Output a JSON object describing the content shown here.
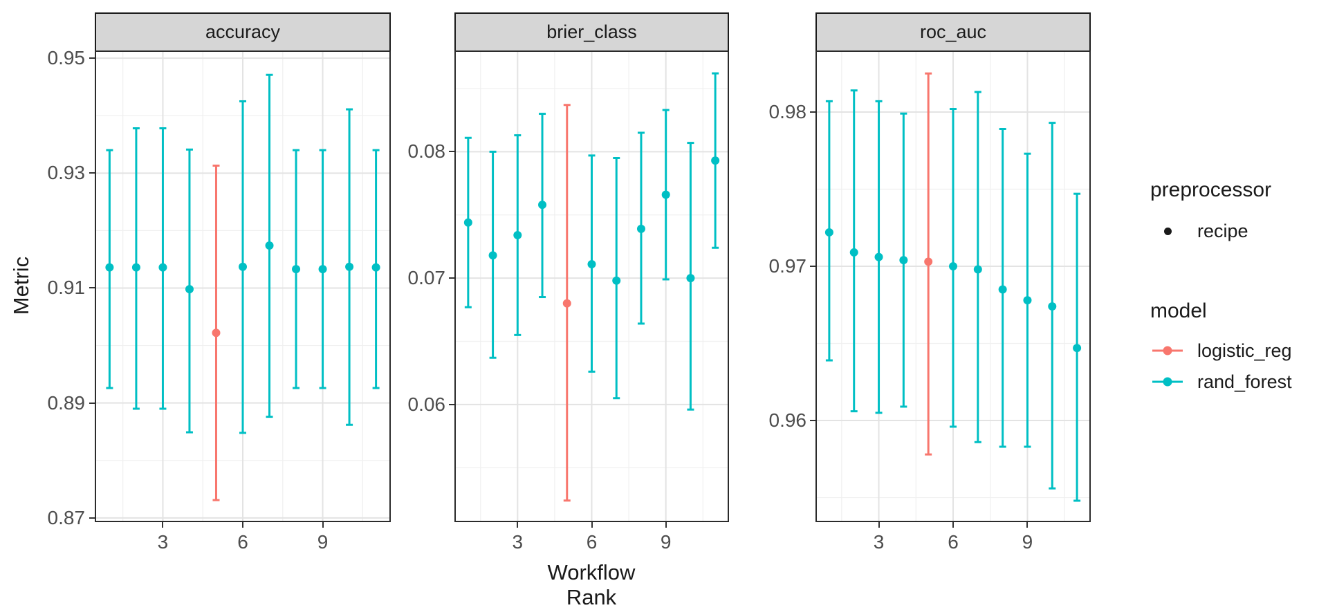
{
  "figure": {
    "y_axis_title": "Metric",
    "x_axis_title": "Workflow Rank",
    "colors": {
      "logistic_reg": "#F8766D",
      "rand_forest": "#00BFC4",
      "preprocessor_point": "#1a1a1a"
    }
  },
  "legend": {
    "groups": [
      {
        "title": "preprocessor",
        "items": [
          {
            "label": "recipe",
            "glyph": "point",
            "color": "#1a1a1a"
          }
        ]
      },
      {
        "title": "model",
        "items": [
          {
            "label": "logistic_reg",
            "glyph": "pointrange",
            "color": "#F8766D"
          },
          {
            "label": "rand_forest",
            "glyph": "pointrange",
            "color": "#00BFC4"
          }
        ]
      }
    ]
  },
  "chart_data": {
    "type": "scatter",
    "mark": "pointrange-with-errorbar",
    "xlabel": "Workflow Rank",
    "ylabel": "Metric",
    "grid": "on",
    "legend_position": "right",
    "x_domain": [
      1,
      11
    ],
    "x_ticks": [
      {
        "value": 3,
        "label": "3"
      },
      {
        "value": 6,
        "label": "6"
      },
      {
        "value": 9,
        "label": "9"
      }
    ],
    "x_minor_ticks": [
      1.5,
      4.5,
      7.5,
      10.5
    ],
    "facets": [
      {
        "label": "accuracy",
        "ylim": [
          0.8695,
          0.9511
        ],
        "y_ticks": [
          {
            "value": 0.87,
            "label": "0.87"
          },
          {
            "value": 0.89,
            "label": "0.89"
          },
          {
            "value": 0.91,
            "label": "0.91"
          },
          {
            "value": 0.93,
            "label": "0.93"
          },
          {
            "value": 0.95,
            "label": "0.95"
          }
        ],
        "points": [
          {
            "rank": 1,
            "model": "rand_forest",
            "preprocessor": "recipe",
            "mean": 0.9136,
            "lower": 0.8926,
            "upper": 0.934
          },
          {
            "rank": 2,
            "model": "rand_forest",
            "preprocessor": "recipe",
            "mean": 0.9136,
            "lower": 0.889,
            "upper": 0.9378
          },
          {
            "rank": 3,
            "model": "rand_forest",
            "preprocessor": "recipe",
            "mean": 0.9136,
            "lower": 0.889,
            "upper": 0.9378
          },
          {
            "rank": 4,
            "model": "rand_forest",
            "preprocessor": "recipe",
            "mean": 0.9098,
            "lower": 0.8849,
            "upper": 0.9341
          },
          {
            "rank": 5,
            "model": "logistic_reg",
            "preprocessor": "recipe",
            "mean": 0.9022,
            "lower": 0.8731,
            "upper": 0.9313
          },
          {
            "rank": 6,
            "model": "rand_forest",
            "preprocessor": "recipe",
            "mean": 0.9137,
            "lower": 0.8848,
            "upper": 0.9425
          },
          {
            "rank": 7,
            "model": "rand_forest",
            "preprocessor": "recipe",
            "mean": 0.9174,
            "lower": 0.8876,
            "upper": 0.9471
          },
          {
            "rank": 8,
            "model": "rand_forest",
            "preprocessor": "recipe",
            "mean": 0.9133,
            "lower": 0.8926,
            "upper": 0.934
          },
          {
            "rank": 9,
            "model": "rand_forest",
            "preprocessor": "recipe",
            "mean": 0.9133,
            "lower": 0.8926,
            "upper": 0.934
          },
          {
            "rank": 10,
            "model": "rand_forest",
            "preprocessor": "recipe",
            "mean": 0.9137,
            "lower": 0.8862,
            "upper": 0.9411
          },
          {
            "rank": 11,
            "model": "rand_forest",
            "preprocessor": "recipe",
            "mean": 0.9136,
            "lower": 0.8926,
            "upper": 0.934
          }
        ]
      },
      {
        "label": "brier_class",
        "ylim": [
          0.0508,
          0.0879
        ],
        "y_ticks": [
          {
            "value": 0.06,
            "label": "0.06"
          },
          {
            "value": 0.07,
            "label": "0.07"
          },
          {
            "value": 0.08,
            "label": "0.08"
          }
        ],
        "points": [
          {
            "rank": 1,
            "model": "rand_forest",
            "preprocessor": "recipe",
            "mean": 0.0744,
            "lower": 0.0677,
            "upper": 0.0811
          },
          {
            "rank": 2,
            "model": "rand_forest",
            "preprocessor": "recipe",
            "mean": 0.0718,
            "lower": 0.0637,
            "upper": 0.08
          },
          {
            "rank": 3,
            "model": "rand_forest",
            "preprocessor": "recipe",
            "mean": 0.0734,
            "lower": 0.0655,
            "upper": 0.0813
          },
          {
            "rank": 4,
            "model": "rand_forest",
            "preprocessor": "recipe",
            "mean": 0.0758,
            "lower": 0.0685,
            "upper": 0.083
          },
          {
            "rank": 5,
            "model": "logistic_reg",
            "preprocessor": "recipe",
            "mean": 0.068,
            "lower": 0.0524,
            "upper": 0.0837
          },
          {
            "rank": 6,
            "model": "rand_forest",
            "preprocessor": "recipe",
            "mean": 0.0711,
            "lower": 0.0626,
            "upper": 0.0797
          },
          {
            "rank": 7,
            "model": "rand_forest",
            "preprocessor": "recipe",
            "mean": 0.0698,
            "lower": 0.0605,
            "upper": 0.0795
          },
          {
            "rank": 8,
            "model": "rand_forest",
            "preprocessor": "recipe",
            "mean": 0.0739,
            "lower": 0.0664,
            "upper": 0.0815
          },
          {
            "rank": 9,
            "model": "rand_forest",
            "preprocessor": "recipe",
            "mean": 0.0766,
            "lower": 0.0699,
            "upper": 0.0833
          },
          {
            "rank": 10,
            "model": "rand_forest",
            "preprocessor": "recipe",
            "mean": 0.07,
            "lower": 0.0596,
            "upper": 0.0807
          },
          {
            "rank": 11,
            "model": "rand_forest",
            "preprocessor": "recipe",
            "mean": 0.0793,
            "lower": 0.0724,
            "upper": 0.0862
          }
        ]
      },
      {
        "label": "roc_auc",
        "ylim": [
          0.9535,
          0.9839
        ],
        "y_ticks": [
          {
            "value": 0.96,
            "label": "0.96"
          },
          {
            "value": 0.97,
            "label": "0.97"
          },
          {
            "value": 0.98,
            "label": "0.98"
          }
        ],
        "points": [
          {
            "rank": 1,
            "model": "rand_forest",
            "preprocessor": "recipe",
            "mean": 0.9722,
            "lower": 0.9639,
            "upper": 0.9807
          },
          {
            "rank": 2,
            "model": "rand_forest",
            "preprocessor": "recipe",
            "mean": 0.9709,
            "lower": 0.9606,
            "upper": 0.9814
          },
          {
            "rank": 3,
            "model": "rand_forest",
            "preprocessor": "recipe",
            "mean": 0.9706,
            "lower": 0.9605,
            "upper": 0.9807
          },
          {
            "rank": 4,
            "model": "rand_forest",
            "preprocessor": "recipe",
            "mean": 0.9704,
            "lower": 0.9609,
            "upper": 0.9799
          },
          {
            "rank": 5,
            "model": "logistic_reg",
            "preprocessor": "recipe",
            "mean": 0.9703,
            "lower": 0.9578,
            "upper": 0.9825
          },
          {
            "rank": 6,
            "model": "rand_forest",
            "preprocessor": "recipe",
            "mean": 0.97,
            "lower": 0.9596,
            "upper": 0.9802
          },
          {
            "rank": 7,
            "model": "rand_forest",
            "preprocessor": "recipe",
            "mean": 0.9698,
            "lower": 0.9586,
            "upper": 0.9813
          },
          {
            "rank": 8,
            "model": "rand_forest",
            "preprocessor": "recipe",
            "mean": 0.9685,
            "lower": 0.9583,
            "upper": 0.9789
          },
          {
            "rank": 9,
            "model": "rand_forest",
            "preprocessor": "recipe",
            "mean": 0.9678,
            "lower": 0.9583,
            "upper": 0.9773
          },
          {
            "rank": 10,
            "model": "rand_forest",
            "preprocessor": "recipe",
            "mean": 0.9674,
            "lower": 0.9556,
            "upper": 0.9793
          },
          {
            "rank": 11,
            "model": "rand_forest",
            "preprocessor": "recipe",
            "mean": 0.9647,
            "lower": 0.9548,
            "upper": 0.9747
          }
        ]
      }
    ]
  }
}
